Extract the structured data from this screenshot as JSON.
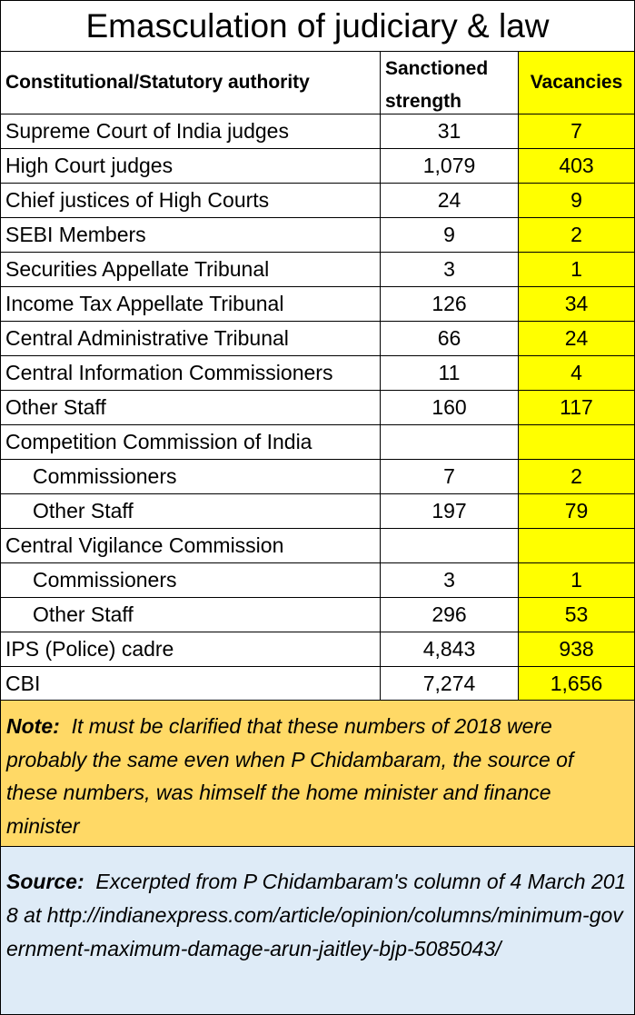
{
  "chart_data": {
    "type": "table",
    "title": "Emasculation of  judiciary & law",
    "columns": [
      "Constitutional/Statutory authority",
      "Sanctioned strength",
      "Vacancies"
    ],
    "rows": [
      {
        "label": "Supreme Court of India judges",
        "indent": false,
        "sanctioned": "31",
        "vacancies": "7"
      },
      {
        "label": "High Court judges",
        "indent": false,
        "sanctioned": "1,079",
        "vacancies": "403"
      },
      {
        "label": "Chief justices of High Courts",
        "indent": false,
        "sanctioned": "24",
        "vacancies": "9"
      },
      {
        "label": "SEBI Members",
        "indent": false,
        "sanctioned": "9",
        "vacancies": "2"
      },
      {
        "label": "Securities Appellate Tribunal",
        "indent": false,
        "sanctioned": "3",
        "vacancies": "1"
      },
      {
        "label": "Income Tax Appellate Tribunal",
        "indent": false,
        "sanctioned": "126",
        "vacancies": "34"
      },
      {
        "label": "Central Administrative Tribunal",
        "indent": false,
        "sanctioned": "66",
        "vacancies": "24"
      },
      {
        "label": "Central Information Commissioners",
        "indent": false,
        "sanctioned": "11",
        "vacancies": "4"
      },
      {
        "label": "Other Staff",
        "indent": false,
        "sanctioned": "160",
        "vacancies": "117"
      },
      {
        "label": "Competition Commission of India",
        "indent": false,
        "sanctioned": "",
        "vacancies": ""
      },
      {
        "label": "Commissioners",
        "indent": true,
        "sanctioned": "7",
        "vacancies": "2"
      },
      {
        "label": "Other Staff",
        "indent": true,
        "sanctioned": "197",
        "vacancies": "79"
      },
      {
        "label": "Central Vigilance Commission",
        "indent": false,
        "sanctioned": "",
        "vacancies": ""
      },
      {
        "label": "Commissioners",
        "indent": true,
        "sanctioned": "3",
        "vacancies": "1"
      },
      {
        "label": "Other Staff",
        "indent": true,
        "sanctioned": "296",
        "vacancies": "53"
      },
      {
        "label": "IPS (Police) cadre",
        "indent": false,
        "sanctioned": "4,843",
        "vacancies": "938"
      },
      {
        "label": "CBI",
        "indent": false,
        "sanctioned": "7,274",
        "vacancies": "1,656"
      }
    ]
  },
  "note": {
    "label": "Note:",
    "text": "It must be clarified that these numbers of 2018 were probably the same even when P Chidambaram, the source of these numbers, was himself the home minister and finance minister"
  },
  "source": {
    "label": "Source:",
    "text": "Excerpted from P Chidambaram's column of 4 March 2018 at http://indianexpress.com/article/opinion/columns/minimum-government-maximum-damage-arun-jaitley-bjp-5085043/"
  },
  "colors": {
    "vacancy_fill": "#ffff00",
    "note_fill": "#ffd966",
    "source_fill": "#deebf7"
  }
}
